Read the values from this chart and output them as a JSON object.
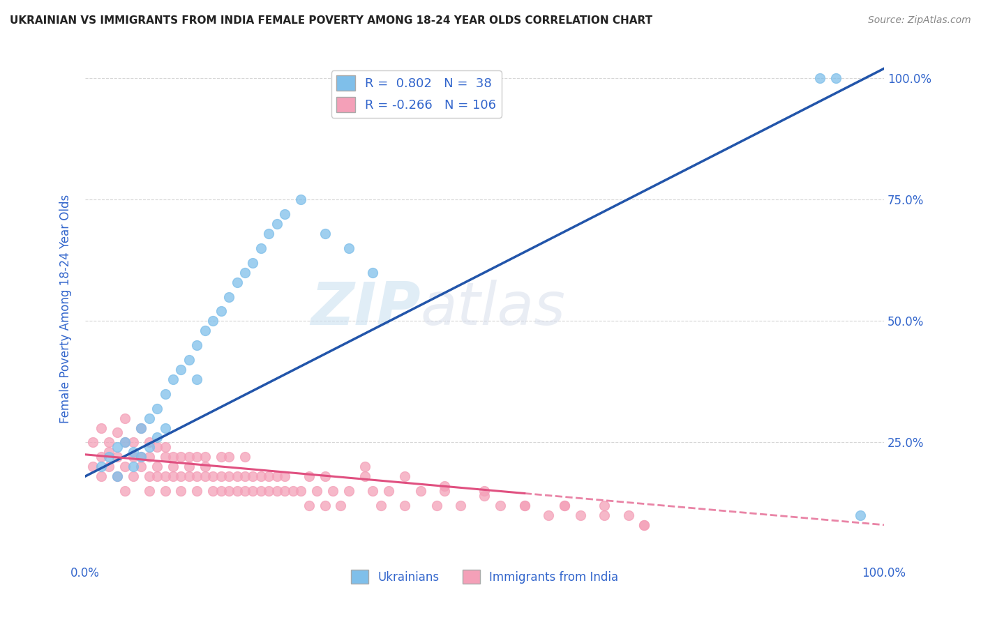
{
  "title": "UKRAINIAN VS IMMIGRANTS FROM INDIA FEMALE POVERTY AMONG 18-24 YEAR OLDS CORRELATION CHART",
  "source": "Source: ZipAtlas.com",
  "ylabel": "Female Poverty Among 18-24 Year Olds",
  "watermark_zip": "ZIP",
  "watermark_atlas": "atlas",
  "blue_R": 0.802,
  "blue_N": 38,
  "pink_R": -0.266,
  "pink_N": 106,
  "blue_color": "#7fbfea",
  "pink_color": "#f4a0b8",
  "blue_line_color": "#2255aa",
  "pink_line_color": "#e05080",
  "title_color": "#222222",
  "axis_label_color": "#3366cc",
  "legend_text_color": "#3366cc",
  "background_color": "#ffffff",
  "grid_color": "#cccccc",
  "tick_color": "#3366cc",
  "xlim": [
    0.0,
    1.0
  ],
  "ylim": [
    0.0,
    1.05
  ],
  "blue_line_x0": 0.0,
  "blue_line_y0": 0.18,
  "blue_line_x1": 1.0,
  "blue_line_y1": 1.02,
  "pink_line_solid_x0": 0.0,
  "pink_line_solid_y0": 0.225,
  "pink_line_solid_x1": 0.55,
  "pink_line_solid_y1": 0.145,
  "pink_line_dash_x0": 0.55,
  "pink_line_dash_y0": 0.145,
  "pink_line_dash_x1": 1.0,
  "pink_line_dash_y1": 0.08,
  "blue_x": [
    0.02,
    0.03,
    0.04,
    0.04,
    0.05,
    0.06,
    0.06,
    0.07,
    0.07,
    0.08,
    0.08,
    0.09,
    0.09,
    0.1,
    0.1,
    0.11,
    0.12,
    0.13,
    0.14,
    0.14,
    0.15,
    0.16,
    0.17,
    0.18,
    0.19,
    0.2,
    0.21,
    0.22,
    0.23,
    0.24,
    0.25,
    0.27,
    0.3,
    0.33,
    0.36,
    0.92,
    0.94,
    0.97
  ],
  "blue_y": [
    0.2,
    0.22,
    0.18,
    0.24,
    0.25,
    0.2,
    0.23,
    0.28,
    0.22,
    0.3,
    0.24,
    0.32,
    0.26,
    0.35,
    0.28,
    0.38,
    0.4,
    0.42,
    0.45,
    0.38,
    0.48,
    0.5,
    0.52,
    0.55,
    0.58,
    0.6,
    0.62,
    0.65,
    0.68,
    0.7,
    0.72,
    0.75,
    0.68,
    0.65,
    0.6,
    1.0,
    1.0,
    0.1
  ],
  "pink_x": [
    0.01,
    0.01,
    0.02,
    0.02,
    0.02,
    0.03,
    0.03,
    0.03,
    0.04,
    0.04,
    0.04,
    0.05,
    0.05,
    0.05,
    0.05,
    0.06,
    0.06,
    0.06,
    0.07,
    0.07,
    0.07,
    0.08,
    0.08,
    0.08,
    0.08,
    0.09,
    0.09,
    0.09,
    0.1,
    0.1,
    0.1,
    0.1,
    0.11,
    0.11,
    0.11,
    0.12,
    0.12,
    0.12,
    0.13,
    0.13,
    0.13,
    0.14,
    0.14,
    0.14,
    0.15,
    0.15,
    0.15,
    0.16,
    0.16,
    0.17,
    0.17,
    0.17,
    0.18,
    0.18,
    0.18,
    0.19,
    0.19,
    0.2,
    0.2,
    0.2,
    0.21,
    0.21,
    0.22,
    0.22,
    0.23,
    0.23,
    0.24,
    0.24,
    0.25,
    0.25,
    0.26,
    0.27,
    0.28,
    0.28,
    0.29,
    0.3,
    0.3,
    0.31,
    0.32,
    0.33,
    0.35,
    0.36,
    0.37,
    0.38,
    0.4,
    0.42,
    0.44,
    0.45,
    0.47,
    0.5,
    0.52,
    0.55,
    0.58,
    0.6,
    0.62,
    0.65,
    0.68,
    0.7,
    0.35,
    0.4,
    0.45,
    0.5,
    0.55,
    0.6,
    0.65,
    0.7
  ],
  "pink_y": [
    0.2,
    0.25,
    0.22,
    0.18,
    0.28,
    0.23,
    0.2,
    0.25,
    0.18,
    0.22,
    0.27,
    0.2,
    0.25,
    0.15,
    0.3,
    0.22,
    0.18,
    0.25,
    0.2,
    0.22,
    0.28,
    0.18,
    0.22,
    0.25,
    0.15,
    0.2,
    0.24,
    0.18,
    0.22,
    0.18,
    0.24,
    0.15,
    0.2,
    0.18,
    0.22,
    0.18,
    0.22,
    0.15,
    0.2,
    0.18,
    0.22,
    0.18,
    0.22,
    0.15,
    0.2,
    0.18,
    0.22,
    0.18,
    0.15,
    0.18,
    0.22,
    0.15,
    0.18,
    0.22,
    0.15,
    0.18,
    0.15,
    0.18,
    0.15,
    0.22,
    0.18,
    0.15,
    0.18,
    0.15,
    0.18,
    0.15,
    0.18,
    0.15,
    0.18,
    0.15,
    0.15,
    0.15,
    0.18,
    0.12,
    0.15,
    0.18,
    0.12,
    0.15,
    0.12,
    0.15,
    0.18,
    0.15,
    0.12,
    0.15,
    0.12,
    0.15,
    0.12,
    0.15,
    0.12,
    0.15,
    0.12,
    0.12,
    0.1,
    0.12,
    0.1,
    0.12,
    0.1,
    0.08,
    0.2,
    0.18,
    0.16,
    0.14,
    0.12,
    0.12,
    0.1,
    0.08
  ]
}
